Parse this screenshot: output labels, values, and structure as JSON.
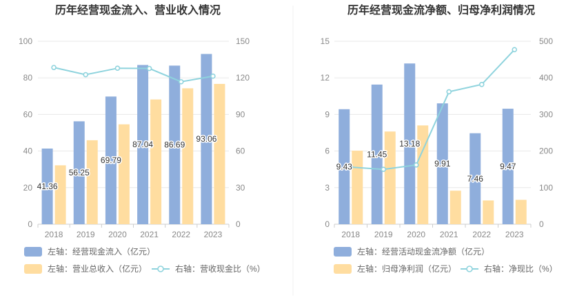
{
  "colors": {
    "bar_primary": "#8FAEDC",
    "bar_secondary": "#FFDDA0",
    "line": "#8ED3DD",
    "text": "#333333",
    "axis_text": "#888888",
    "grid": "#E8E8E8",
    "divider": "#F0F0F0"
  },
  "chart_data": [
    {
      "type": "bar",
      "title": "历年经营现金流入、营业收入情况",
      "categories": [
        "2018",
        "2019",
        "2020",
        "2021",
        "2022",
        "2023"
      ],
      "left_axis": {
        "ticks": [
          "0",
          "20",
          "40",
          "60",
          "80",
          "100"
        ],
        "ylim": [
          0,
          100
        ]
      },
      "right_axis": {
        "ticks": [
          "0",
          "30",
          "60",
          "90",
          "120",
          "150"
        ],
        "ylim": [
          0,
          150
        ]
      },
      "series": [
        {
          "name": "左轴：经营现金流入（亿元）",
          "kind": "bar",
          "axis": "left",
          "values": [
            41.36,
            56.25,
            69.79,
            87.04,
            86.69,
            93.06
          ],
          "labels": [
            "41.36",
            "56.25",
            "69.79",
            "87.04",
            "86.69",
            "93.06"
          ]
        },
        {
          "name": "左轴：营业总收入（亿元）",
          "kind": "bar",
          "axis": "left",
          "values": [
            32.2,
            45.9,
            54.6,
            68.2,
            74.3,
            76.7
          ]
        },
        {
          "name": "右轴：营收现金比（%）",
          "kind": "line",
          "axis": "right",
          "values": [
            128.5,
            122.6,
            127.9,
            127.7,
            116.8,
            121.4
          ]
        }
      ],
      "legend": {
        "position": "bottom"
      }
    },
    {
      "type": "bar",
      "title": "历年经营现金流净额、归母净利润情况",
      "categories": [
        "2018",
        "2019",
        "2020",
        "2021",
        "2022",
        "2023"
      ],
      "left_axis": {
        "ticks": [
          "0",
          "3",
          "6",
          "9",
          "12",
          "15"
        ],
        "ylim": [
          0,
          15
        ]
      },
      "right_axis": {
        "ticks": [
          "0",
          "100",
          "200",
          "300",
          "400",
          "500"
        ],
        "ylim": [
          0,
          500
        ]
      },
      "series": [
        {
          "name": "左轴：经营活动现金流净额（亿元）",
          "kind": "bar",
          "axis": "left",
          "values": [
            9.43,
            11.45,
            13.18,
            9.91,
            7.46,
            9.47
          ],
          "labels": [
            "9.43",
            "11.45",
            "13.18",
            "9.91",
            "7.46",
            "9.47"
          ]
        },
        {
          "name": "左轴：归母净利润（亿元）",
          "kind": "bar",
          "axis": "left",
          "values": [
            6.03,
            7.6,
            8.1,
            2.75,
            1.95,
            2.0
          ]
        },
        {
          "name": "右轴：净现比（%）",
          "kind": "line",
          "axis": "right",
          "values": [
            156,
            150,
            162,
            362,
            382,
            477
          ]
        }
      ],
      "legend": {
        "position": "bottom"
      }
    }
  ]
}
